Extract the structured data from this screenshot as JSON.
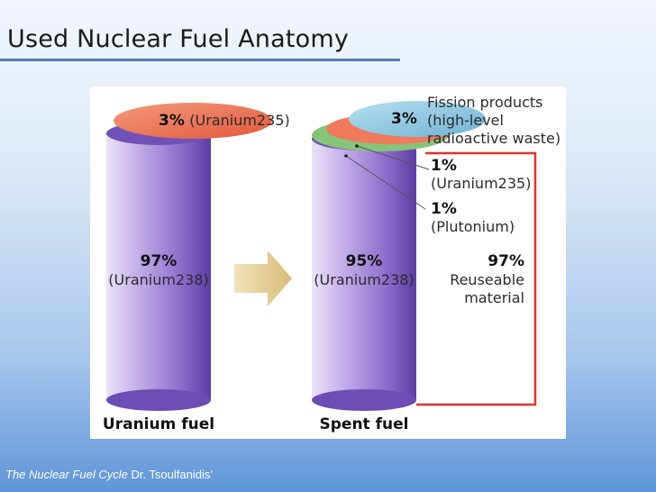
{
  "slide": {
    "title": "Used Nuclear Fuel Anatomy",
    "caption_italic": "The Nuclear Fuel Cycle",
    "caption_rest": " Dr. Tsoulfanidis’"
  },
  "diagram": {
    "uranium_fuel": {
      "label": "Uranium  fuel",
      "top_pct": "3%",
      "top_desc": "(Uranium235)",
      "body_pct": "97%",
      "body_desc": "(Uranium238)"
    },
    "spent_fuel": {
      "label": "Spent  fuel",
      "body_pct": "95%",
      "body_desc": "(Uranium238)",
      "fission_pct": "3%",
      "fission_line1": "Fission products",
      "fission_line2": "(high-level",
      "fission_line3": "radioactive waste)",
      "u235_pct": "1%",
      "u235_desc": "(Uranium235)",
      "pu_pct": "1%",
      "pu_desc": "(Plutonium)",
      "reuse_pct": "97%",
      "reuse_line1": "Reuseable",
      "reuse_line2": "material"
    },
    "colors": {
      "cylinder": "#8c6fc6",
      "uranium235_disc": "#ef7a5c",
      "plutonium_disc": "#86c47a",
      "fission_disc": "#8cc6de",
      "arrow": "#e4cf9a",
      "bracket": "#e0332b"
    }
  }
}
